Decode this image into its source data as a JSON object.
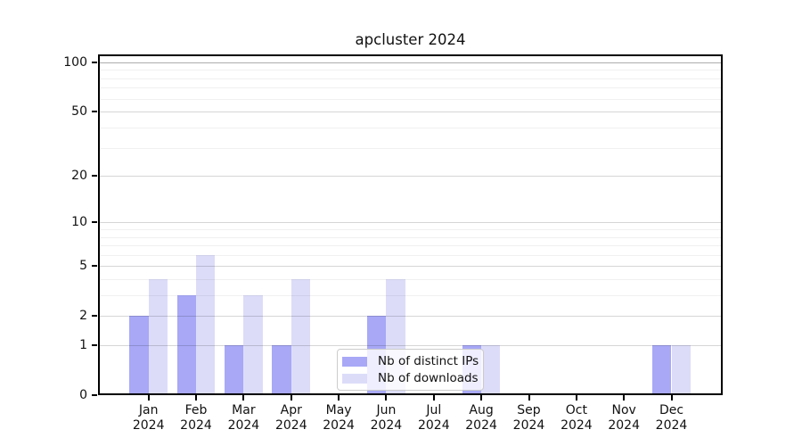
{
  "figure": {
    "title": "apcluster 2024"
  },
  "chart_data": {
    "type": "bar",
    "title": "apcluster 2024",
    "categories": [
      "Jan",
      "Feb",
      "Mar",
      "Apr",
      "May",
      "Jun",
      "Jul",
      "Aug",
      "Sep",
      "Oct",
      "Nov",
      "Dec"
    ],
    "category_year": "2024",
    "series": [
      {
        "name": "Nb of distinct IPs",
        "color": "#a8a8f7",
        "values": [
          2,
          3,
          1,
          1,
          0,
          2,
          0,
          1,
          0,
          0,
          0,
          1
        ]
      },
      {
        "name": "Nb of downloads",
        "color": "#dcdcf9",
        "values": [
          4,
          6,
          3,
          4,
          0,
          4,
          0,
          1,
          0,
          0,
          0,
          1
        ]
      }
    ],
    "xlabel": "",
    "ylabel": "",
    "y_axis": {
      "scale": "log1p",
      "ticks": [
        0,
        1,
        2,
        5,
        10,
        20,
        50,
        100
      ],
      "minor_ticks": [
        3,
        4,
        6,
        7,
        8,
        9,
        30,
        40,
        60,
        70,
        80,
        90
      ],
      "top_value": 112
    },
    "grid": "on",
    "legend": {
      "position": "lower center",
      "entries": [
        "Nb of distinct IPs",
        "Nb of downloads"
      ]
    }
  }
}
